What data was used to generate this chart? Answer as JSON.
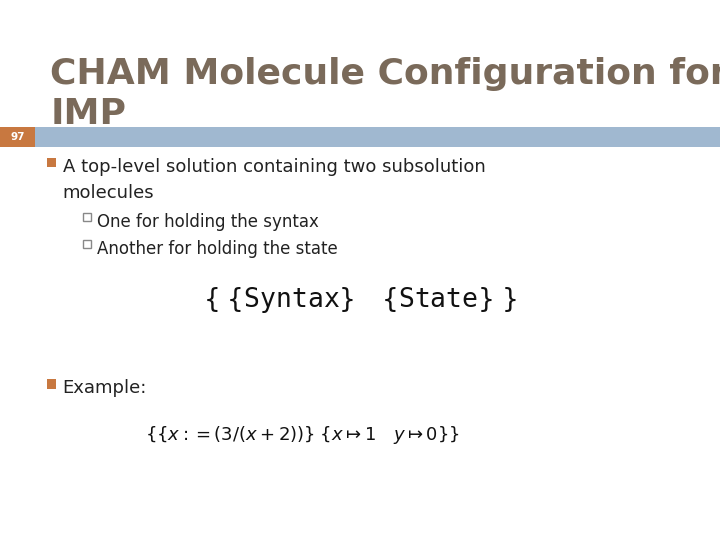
{
  "title_line1": "CHAM Molecule Configuration for",
  "title_line2": "IMP",
  "title_color": "#7a6a5a",
  "slide_number": "97",
  "slide_num_bg": "#c87840",
  "slide_num_fg": "#ffffff",
  "header_bar_color": "#a0b8d0",
  "bg_color": "#ffffff",
  "bullet1_color": "#c87840",
  "sub_bullet_edge": "#888888",
  "text_color": "#222222",
  "math_color": "#111111",
  "title_fontsize": 26,
  "body_fontsize": 13,
  "sub_fontsize": 12,
  "math_fontsize": 19,
  "example_math_fontsize": 13
}
